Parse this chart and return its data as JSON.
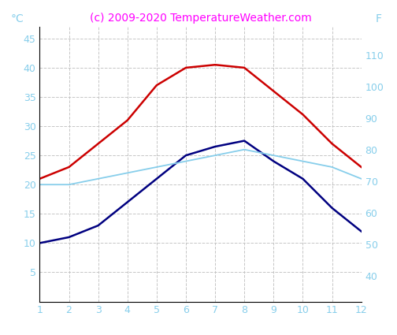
{
  "months": [
    1,
    2,
    3,
    4,
    5,
    6,
    7,
    8,
    9,
    10,
    11,
    12
  ],
  "air_temp_max": [
    21,
    23,
    27,
    31,
    37,
    40,
    40.5,
    40,
    36,
    32,
    27,
    23
  ],
  "water_temp": [
    20,
    20,
    21,
    22,
    23,
    24,
    25,
    26,
    25,
    24,
    23,
    21
  ],
  "air_temp_min": [
    10,
    11,
    13,
    17,
    21,
    25,
    26.5,
    27.5,
    24,
    21,
    16,
    12
  ],
  "air_max_color": "#cc0000",
  "air_min_color": "#000080",
  "water_color": "#87ceeb",
  "title": "(c) 2009-2020 TemperatureWeather.com",
  "title_color": "#ff00ff",
  "ylabel_left": "°C",
  "ylabel_right": "F",
  "ylim_left": [
    0,
    47
  ],
  "ylim_right": [
    32,
    119
  ],
  "yticks_left": [
    5,
    10,
    15,
    20,
    25,
    30,
    35,
    40,
    45
  ],
  "yticks_right": [
    40,
    50,
    60,
    70,
    80,
    90,
    100,
    110
  ],
  "background_color": "#ffffff",
  "grid_color": "#c0c0c0",
  "tick_color": "#87ceeb",
  "title_fontsize": 10,
  "tick_fontsize": 9
}
